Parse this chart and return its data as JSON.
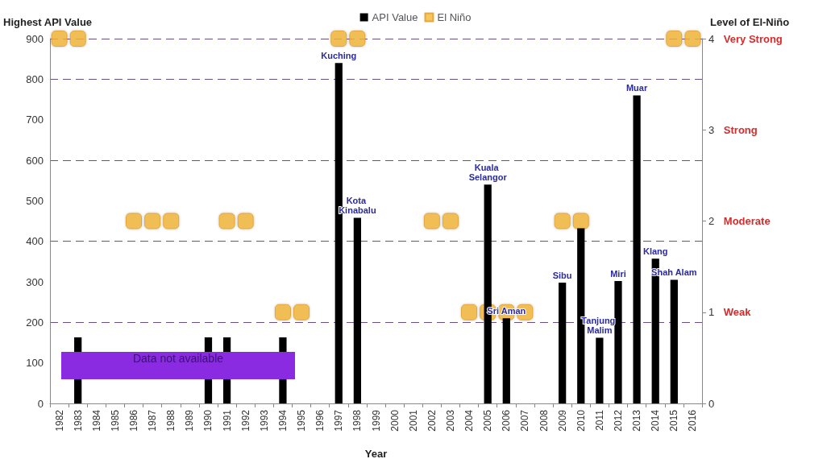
{
  "chart_data": {
    "type": "bar",
    "xlabel": "Year",
    "ylabel": "Highest API Value",
    "y2label": "Level of El-Niño",
    "categories": [
      "1982",
      "1983",
      "1984",
      "1985",
      "1986",
      "1987",
      "1988",
      "1989",
      "1990",
      "1991",
      "1992",
      "1993",
      "1994",
      "1995",
      "1996",
      "1997",
      "1998",
      "1999",
      "2000",
      "2001",
      "2002",
      "2003",
      "2004",
      "2005",
      "2006",
      "2007",
      "2008",
      "2009",
      "2010",
      "2011",
      "2012",
      "2013",
      "2014",
      "2015",
      "2016"
    ],
    "series": [
      {
        "name": "API Value",
        "color": "#000000",
        "values": [
          null,
          163,
          null,
          null,
          null,
          null,
          null,
          null,
          163,
          163,
          null,
          null,
          163,
          null,
          null,
          840,
          458,
          null,
          null,
          null,
          null,
          null,
          null,
          540,
          210,
          null,
          null,
          298,
          432,
          162,
          302,
          760,
          357,
          305,
          null
        ],
        "value_labels": [
          null,
          null,
          null,
          null,
          null,
          null,
          null,
          null,
          null,
          null,
          null,
          null,
          null,
          null,
          null,
          "Kuching",
          "Kota Kinabalu",
          null,
          null,
          null,
          null,
          null,
          null,
          "Kuala Selangor",
          "Sri Aman",
          null,
          null,
          "Sibu",
          null,
          "Tanjung Malim",
          "Miri",
          "Muar",
          "Klang",
          "Shah Alam",
          null
        ]
      },
      {
        "name": "El Niño",
        "type": "scatter",
        "axis": "y2",
        "color": "#f5b83a",
        "marker": "square",
        "values": [
          4,
          4,
          null,
          null,
          2,
          2,
          2,
          null,
          null,
          2,
          2,
          null,
          1,
          1,
          null,
          4,
          4,
          null,
          null,
          null,
          2,
          2,
          1,
          1,
          1,
          1,
          null,
          2,
          2,
          null,
          null,
          null,
          null,
          4,
          4
        ]
      }
    ],
    "ylim": [
      0,
      900
    ],
    "yticks": [
      0,
      100,
      200,
      300,
      400,
      500,
      600,
      700,
      800,
      900
    ],
    "y2lim": [
      0,
      4
    ],
    "y2ticks": [
      0,
      {
        "value": 1,
        "label": "1 Weak"
      },
      {
        "value": 2,
        "label": "2 Moderate"
      },
      {
        "value": 3,
        "label": "3 Strong"
      },
      {
        "value": 4,
        "label": "4 Very Strong"
      }
    ],
    "grid": "y",
    "legend": "top",
    "annotations": [
      "Data not available"
    ]
  }
}
